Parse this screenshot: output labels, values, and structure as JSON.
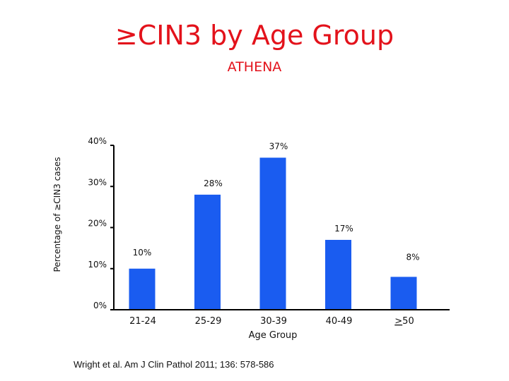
{
  "header": {
    "title": "≥CIN3 by Age Group",
    "subtitle": "ATHENA"
  },
  "footer": {
    "citation": "Wright et al.  Am J Clin Pathol 2011; 136: 578-586"
  },
  "chart_data": {
    "type": "bar",
    "title": "≥CIN3 by Age Group",
    "subtitle": "ATHENA",
    "xlabel": "Age Group",
    "ylabel": "Percentage of ≥CIN3 cases",
    "categories": [
      "21-24",
      "25-29",
      "30-39",
      "40-49",
      ">50"
    ],
    "values": [
      10,
      28,
      37,
      17,
      8
    ],
    "value_labels": [
      "10%",
      "28%",
      "37%",
      "17%",
      "8%"
    ],
    "yticks": [
      0,
      10,
      20,
      30,
      40
    ],
    "ytick_labels": [
      "0%",
      "10%",
      "20%",
      "30%",
      "40%"
    ],
    "ylim": [
      0,
      40
    ],
    "grid": false,
    "bar_color": "#1a5cf0",
    "title_color": "#e3121b"
  }
}
